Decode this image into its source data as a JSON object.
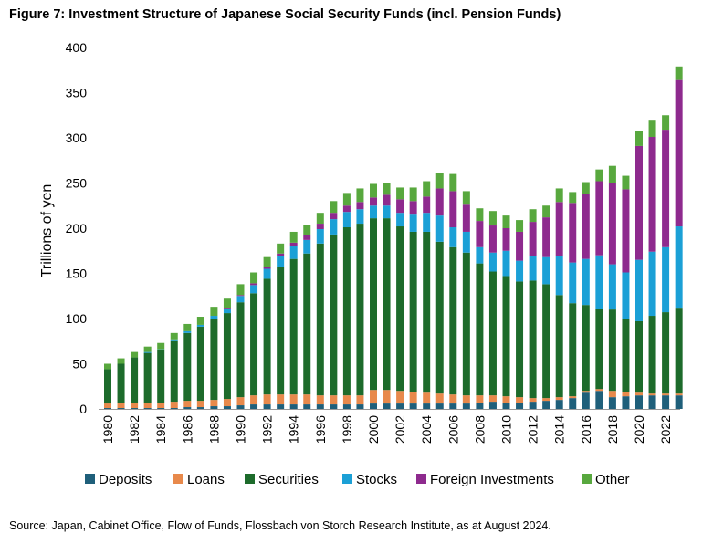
{
  "title": "Figure 7: Investment Structure of Japanese Social Security Funds (incl. Pension Funds)",
  "source": "Source: Japan, Cabinet Office, Flow of Funds, Flossbach von Storch Research Institute, as at August 2024.",
  "chart_data": {
    "type": "bar",
    "stacked": true,
    "ylabel": "Trillions of yen",
    "xlabel": "",
    "ylim": [
      0,
      400
    ],
    "yticks": [
      "0",
      "50",
      "100",
      "150",
      "200",
      "250",
      "300",
      "350",
      "400"
    ],
    "grid": false,
    "legend_position": "bottom",
    "categories": [
      "1980",
      "1981",
      "1982",
      "1983",
      "1984",
      "1985",
      "1986",
      "1987",
      "1988",
      "1989",
      "1990",
      "1991",
      "1992",
      "1993",
      "1994",
      "1995",
      "1996",
      "1997",
      "1998",
      "1999",
      "2000",
      "2001",
      "2002",
      "2003",
      "2004",
      "2005",
      "2006",
      "2007",
      "2008",
      "2009",
      "2010",
      "2011",
      "2012",
      "2013",
      "2014",
      "2015",
      "2016",
      "2017",
      "2018",
      "2019",
      "2020",
      "2021",
      "2022",
      "2023"
    ],
    "xtick_labels": [
      "1980",
      "1982",
      "1984",
      "1986",
      "1988",
      "1990",
      "1992",
      "1994",
      "1996",
      "1998",
      "2000",
      "2002",
      "2004",
      "2006",
      "2008",
      "2010",
      "2012",
      "2014",
      "2016",
      "2018",
      "2020",
      "2022"
    ],
    "series": [
      {
        "name": "Deposits",
        "color": "#1f5f7a",
        "values": [
          1,
          1,
          1,
          1,
          1,
          1,
          2,
          2,
          3,
          3,
          4,
          5,
          5,
          5,
          5,
          5,
          5,
          5,
          5,
          5,
          6,
          6,
          6,
          6,
          6,
          6,
          6,
          6,
          7,
          8,
          7,
          7,
          8,
          9,
          10,
          12,
          18,
          20,
          13,
          14,
          15,
          15,
          15,
          15
        ]
      },
      {
        "name": "Loans",
        "color": "#e8894b",
        "values": [
          5,
          6,
          6,
          6,
          6,
          7,
          7,
          7,
          7,
          8,
          9,
          10,
          11,
          11,
          11,
          11,
          10,
          10,
          10,
          10,
          15,
          15,
          14,
          13,
          12,
          11,
          10,
          9,
          8,
          7,
          7,
          6,
          4,
          3,
          3,
          2,
          2,
          2,
          7,
          5,
          3,
          2,
          2,
          2
        ]
      },
      {
        "name": "Securities",
        "color": "#1d6b2b",
        "values": [
          38,
          43,
          50,
          55,
          58,
          67,
          75,
          82,
          90,
          95,
          105,
          113,
          128,
          141,
          150,
          156,
          168,
          178,
          186,
          190,
          190,
          190,
          182,
          177,
          178,
          168,
          163,
          158,
          146,
          137,
          133,
          128,
          130,
          126,
          113,
          103,
          95,
          89,
          90,
          81,
          79,
          86,
          90,
          95
        ]
      },
      {
        "name": "Stocks",
        "color": "#1ba0d6",
        "values": [
          0,
          0,
          0,
          1,
          1,
          2,
          2,
          2,
          3,
          5,
          7,
          9,
          11,
          12,
          14,
          15,
          16,
          17,
          17,
          16,
          14,
          14,
          15,
          19,
          21,
          29,
          22,
          23,
          18,
          21,
          28,
          23,
          27,
          30,
          43,
          45,
          51,
          59,
          50,
          51,
          68,
          71,
          72,
          90
        ]
      },
      {
        "name": "Foreign Investments",
        "color": "#8e2a8e",
        "values": [
          0,
          0,
          0,
          0,
          0,
          0,
          0,
          0,
          0,
          1,
          1,
          2,
          2,
          3,
          4,
          5,
          6,
          7,
          7,
          8,
          9,
          12,
          15,
          15,
          18,
          30,
          40,
          30,
          29,
          30,
          25,
          32,
          38,
          44,
          60,
          66,
          72,
          82,
          90,
          92,
          126,
          127,
          130,
          162
        ]
      },
      {
        "name": "Other",
        "color": "#58a83e",
        "values": [
          6,
          6,
          6,
          6,
          7,
          7,
          8,
          9,
          10,
          10,
          12,
          12,
          11,
          11,
          12,
          12,
          12,
          13,
          14,
          15,
          15,
          13,
          13,
          15,
          17,
          17,
          19,
          15,
          14,
          16,
          14,
          13,
          14,
          13,
          15,
          12,
          13,
          13,
          19,
          15,
          17,
          18,
          16,
          15
        ]
      }
    ]
  }
}
